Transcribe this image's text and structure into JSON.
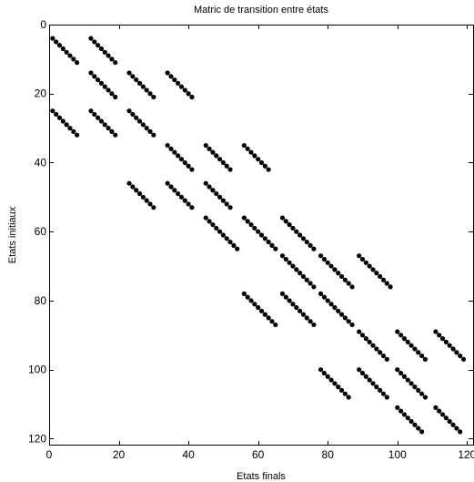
{
  "chart_data": {
    "type": "scatter",
    "title": "Matric de transition entre états",
    "xlabel": "Etats finals",
    "ylabel": "Etats initiaux",
    "xlim": [
      0,
      122
    ],
    "ylim": [
      0,
      122
    ],
    "y_inverted": true,
    "grid": false,
    "xticks": [
      0,
      20,
      40,
      60,
      80,
      100,
      120
    ],
    "yticks": [
      0,
      20,
      40,
      60,
      80,
      100,
      120
    ],
    "marker_color": "#000000",
    "diagonal_segments": [
      {
        "x_start": 1,
        "y_start": 4,
        "count": 8
      },
      {
        "x_start": 12,
        "y_start": 4,
        "count": 8
      },
      {
        "x_start": 12,
        "y_start": 14,
        "count": 8
      },
      {
        "x_start": 23,
        "y_start": 14,
        "count": 8
      },
      {
        "x_start": 34,
        "y_start": 14,
        "count": 8
      },
      {
        "x_start": 1,
        "y_start": 25,
        "count": 8
      },
      {
        "x_start": 12,
        "y_start": 25,
        "count": 8
      },
      {
        "x_start": 23,
        "y_start": 25,
        "count": 8
      },
      {
        "x_start": 34,
        "y_start": 35,
        "count": 8
      },
      {
        "x_start": 45,
        "y_start": 35,
        "count": 8
      },
      {
        "x_start": 56,
        "y_start": 35,
        "count": 8
      },
      {
        "x_start": 23,
        "y_start": 46,
        "count": 8
      },
      {
        "x_start": 34,
        "y_start": 46,
        "count": 8
      },
      {
        "x_start": 45,
        "y_start": 46,
        "count": 8
      },
      {
        "x_start": 45,
        "y_start": 56,
        "count": 10
      },
      {
        "x_start": 56,
        "y_start": 56,
        "count": 10
      },
      {
        "x_start": 67,
        "y_start": 56,
        "count": 10
      },
      {
        "x_start": 67,
        "y_start": 67,
        "count": 10
      },
      {
        "x_start": 78,
        "y_start": 67,
        "count": 10
      },
      {
        "x_start": 89,
        "y_start": 67,
        "count": 10
      },
      {
        "x_start": 56,
        "y_start": 78,
        "count": 10
      },
      {
        "x_start": 67,
        "y_start": 78,
        "count": 10
      },
      {
        "x_start": 78,
        "y_start": 78,
        "count": 10
      },
      {
        "x_start": 89,
        "y_start": 89,
        "count": 9
      },
      {
        "x_start": 100,
        "y_start": 89,
        "count": 9
      },
      {
        "x_start": 111,
        "y_start": 89,
        "count": 9
      },
      {
        "x_start": 78,
        "y_start": 100,
        "count": 9
      },
      {
        "x_start": 89,
        "y_start": 100,
        "count": 9
      },
      {
        "x_start": 100,
        "y_start": 100,
        "count": 9
      },
      {
        "x_start": 100,
        "y_start": 111,
        "count": 8
      },
      {
        "x_start": 111,
        "y_start": 111,
        "count": 8
      }
    ]
  }
}
